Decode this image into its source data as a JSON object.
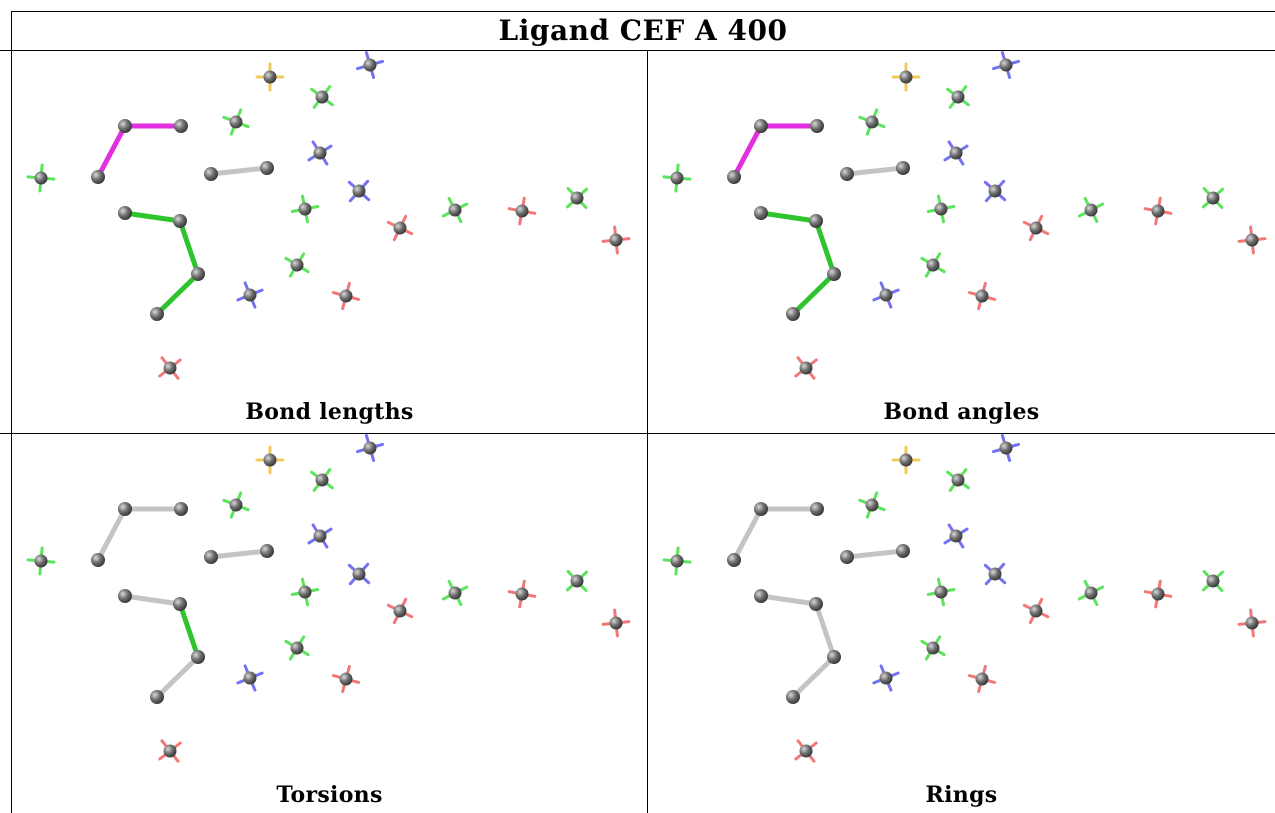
{
  "title": "Ligand CEF A 400",
  "panels": [
    {
      "caption": "Bond lengths",
      "highlights": {
        "b1": "magenta",
        "b2": "magenta",
        "b5": "green",
        "b6": "green",
        "b7": "green"
      }
    },
    {
      "caption": "Bond angles",
      "highlights": {
        "b1": "magenta",
        "b2": "magenta",
        "b5": "green",
        "b6": "green",
        "b7": "green"
      }
    },
    {
      "caption": "Torsions",
      "highlights": {
        "b6": "green"
      }
    },
    {
      "caption": "Rings",
      "highlights": {}
    }
  ],
  "colors": {
    "magenta": "#e030e0",
    "green": "#2ec42e",
    "grey": "#c4c4c4",
    "atom": "#6e6e6e",
    "cross_green": "#40e040",
    "cross_red": "#f06060",
    "cross_blue": "#5a5af0",
    "cross_yellow": "#f0c040"
  }
}
